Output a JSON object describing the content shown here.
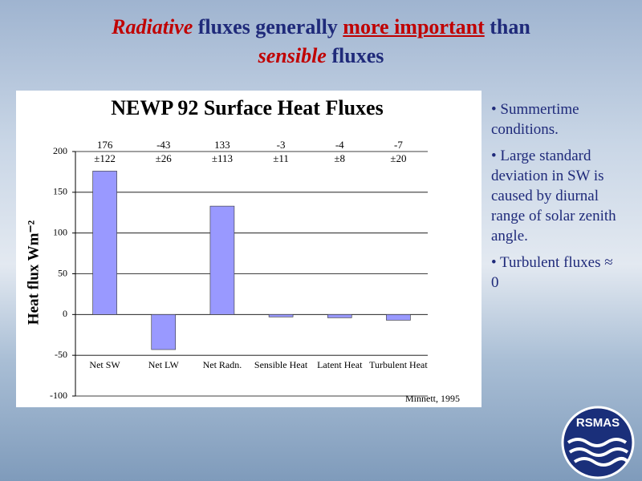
{
  "slide": {
    "title_parts": [
      "Radiative",
      " fluxes generally ",
      "more important",
      " than",
      "sensible",
      " fluxes"
    ],
    "bullets": [
      "• Summertime conditions.",
      "• Large standard deviation in SW is caused by diurnal range of solar zenith angle.",
      "• Turbulent fluxes ≈ 0"
    ],
    "logo": "RSMAS"
  },
  "chart_data": {
    "type": "bar",
    "title": "NEWP 92  Surface Heat Fluxes",
    "ylabel": "Heat flux Wm⁻²",
    "categories": [
      "Net SW",
      "Net LW",
      "Net Radn.",
      "Sensible Heat",
      "Latent Heat",
      "Turbulent Heat"
    ],
    "values": [
      176,
      -43,
      133,
      -3,
      -4,
      -7
    ],
    "error_labels": [
      "±122",
      "±26",
      "±113",
      "±11",
      "±8",
      "±20"
    ],
    "color": "#9999ff",
    "ylim": [
      -100,
      200
    ],
    "yticks": [
      -100,
      -50,
      0,
      50,
      100,
      150,
      200
    ],
    "grid": true,
    "source": "Minnett,  1995"
  }
}
